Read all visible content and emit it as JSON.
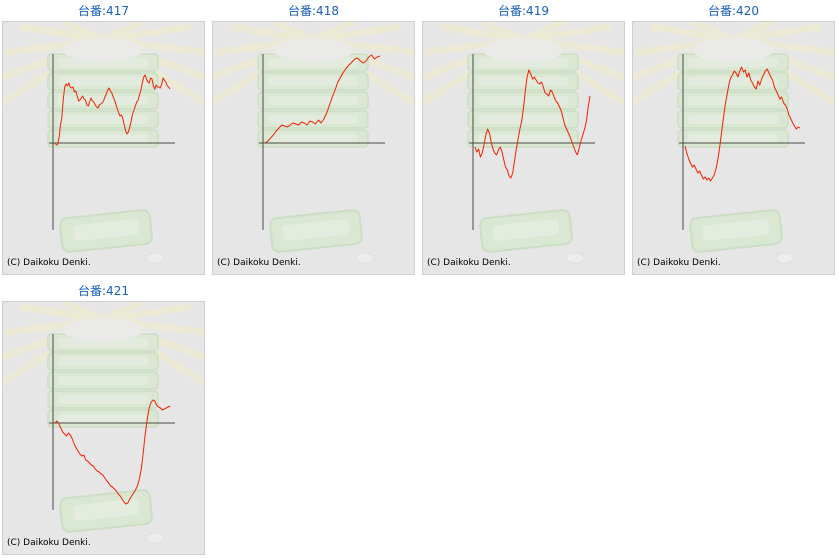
{
  "panels": [
    {
      "title": "台番:417",
      "copyright": "(C) Daikoku Denki.",
      "series_values": [
        0,
        -2,
        -1,
        6,
        18,
        26,
        44,
        56,
        59,
        57,
        60,
        56,
        55,
        56,
        51,
        52,
        47,
        42,
        43,
        45,
        47,
        44,
        43,
        38,
        37,
        41,
        45,
        42,
        41,
        38,
        36,
        35,
        38,
        39,
        40,
        42,
        46,
        49,
        53,
        55,
        52,
        50,
        46,
        43,
        38,
        34,
        30,
        27,
        28,
        24,
        18,
        12,
        9,
        11,
        16,
        22,
        29,
        33,
        37,
        41,
        43,
        48,
        53,
        60,
        66,
        68,
        64,
        61,
        60,
        65,
        64,
        57,
        54,
        58,
        56,
        56,
        55,
        59,
        65,
        63,
        61,
        57,
        56,
        54
      ]
    },
    {
      "title": "台番:418",
      "copyright": "(C) Daikoku Denki.",
      "series_values": [
        0,
        2,
        5,
        8,
        12,
        15,
        18,
        17,
        16,
        18,
        20,
        19,
        18,
        21,
        20,
        18,
        22,
        21,
        19,
        23,
        20,
        24,
        30,
        38,
        46,
        53,
        61,
        66,
        71,
        75,
        78,
        81,
        84,
        85,
        82,
        80,
        82,
        86,
        88,
        84,
        86,
        87
      ]
    },
    {
      "title": "台番:419",
      "copyright": "(C) Daikoku Denki.",
      "series_values": [
        -4,
        -9,
        -6,
        -14,
        -10,
        -2,
        8,
        14,
        10,
        1,
        -6,
        -10,
        -12,
        -7,
        -4,
        -9,
        -17,
        -24,
        -27,
        -33,
        -35,
        -30,
        -18,
        -6,
        4,
        14,
        22,
        35,
        52,
        66,
        73,
        69,
        64,
        66,
        63,
        60,
        59,
        61,
        56,
        50,
        49,
        47,
        53,
        51,
        46,
        42,
        40,
        36,
        32,
        25,
        18,
        14,
        10,
        6,
        1,
        -4,
        -9,
        -12,
        -5,
        2,
        8,
        14,
        22,
        36,
        47
      ]
    },
    {
      "title": "台番:420",
      "copyright": "(C) Daikoku Denki.",
      "series_values": [
        -3,
        -10,
        -16,
        -20,
        -24,
        -22,
        -26,
        -30,
        -28,
        -32,
        -36,
        -34,
        -37,
        -35,
        -38,
        -35,
        -32,
        -26,
        -16,
        -4,
        10,
        24,
        38,
        48,
        58,
        65,
        68,
        72,
        70,
        66,
        72,
        76,
        71,
        73,
        66,
        70,
        63,
        60,
        56,
        54,
        62,
        58,
        64,
        68,
        72,
        74,
        70,
        66,
        63,
        56,
        52,
        48,
        44,
        46,
        40,
        38,
        34,
        28,
        24,
        20,
        17,
        14,
        16,
        15
      ]
    },
    {
      "title": "台番:421",
      "copyright": "(C) Daikoku Denki.",
      "series_values": [
        0,
        2,
        -1,
        -5,
        -9,
        -11,
        -13,
        -10,
        -12,
        -16,
        -21,
        -25,
        -28,
        -31,
        -33,
        -32,
        -37,
        -38,
        -40,
        -42,
        -43,
        -46,
        -48,
        -49,
        -51,
        -52,
        -55,
        -58,
        -60,
        -63,
        -64,
        -66,
        -68,
        -71,
        -73,
        -76,
        -79,
        -81,
        -80,
        -76,
        -73,
        -70,
        -67,
        -63,
        -56,
        -46,
        -30,
        -12,
        2,
        14,
        20,
        23,
        22,
        18,
        16,
        15,
        13,
        14,
        15,
        16,
        17
      ]
    }
  ],
  "colors": {
    "series_line": "#ee2200",
    "axis_line": "#4a4a4a",
    "title_text": "#1a5fb4",
    "panel_bg": "#e6e6e6"
  },
  "icons": {
    "watermark": "slot-machine-watermark"
  }
}
